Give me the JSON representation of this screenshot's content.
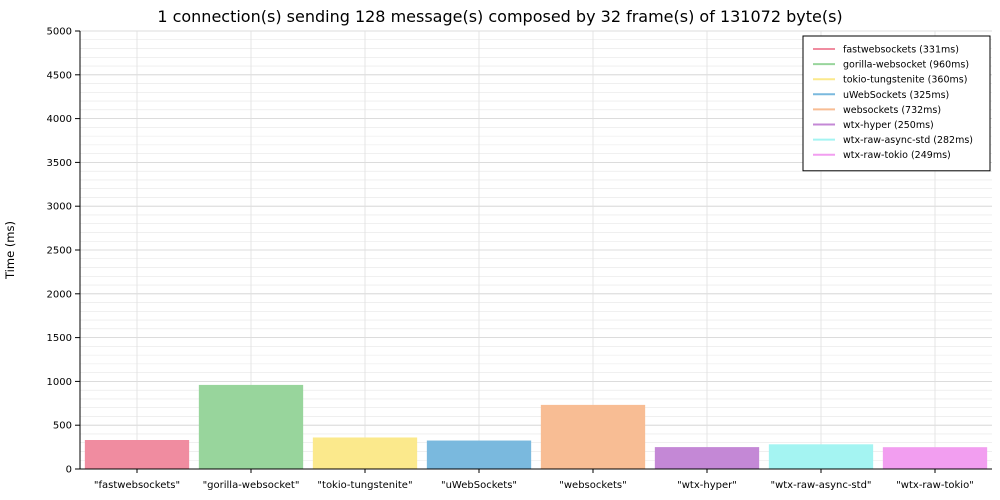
{
  "chart_data": {
    "type": "bar",
    "title": "1 connection(s) sending 128 message(s) composed by 32 frame(s) of 131072 byte(s)",
    "xlabel": "",
    "ylabel": "Time (ms)",
    "ylim": [
      0,
      5000
    ],
    "y_ticks": [
      "0",
      "500",
      "1000",
      "1500",
      "2000",
      "2500",
      "3000",
      "3500",
      "4000",
      "4500",
      "5000"
    ],
    "grid": true,
    "legend_position": "top-right",
    "categories": [
      "\"fastwebsockets\"",
      "\"gorilla-websocket\"",
      "\"tokio-tungstenite\"",
      "\"uWebSockets\"",
      "\"websockets\"",
      "\"wtx-hyper\"",
      "\"wtx-raw-async-std\"",
      "\"wtx-raw-tokio\""
    ],
    "values": [
      331,
      960,
      360,
      325,
      732,
      250,
      282,
      249
    ],
    "colors": [
      "#f08ca0",
      "#98d59c",
      "#fbe98c",
      "#7ab9de",
      "#f8bd94",
      "#c488d6",
      "#a4f4f2",
      "#f29ef0"
    ],
    "legend": [
      "fastwebsockets (331ms)",
      "gorilla-websocket (960ms)",
      "tokio-tungstenite (360ms)",
      "uWebSockets (325ms)",
      "websockets (732ms)",
      "wtx-hyper (250ms)",
      "wtx-raw-async-std (282ms)",
      "wtx-raw-tokio (249ms)"
    ]
  }
}
